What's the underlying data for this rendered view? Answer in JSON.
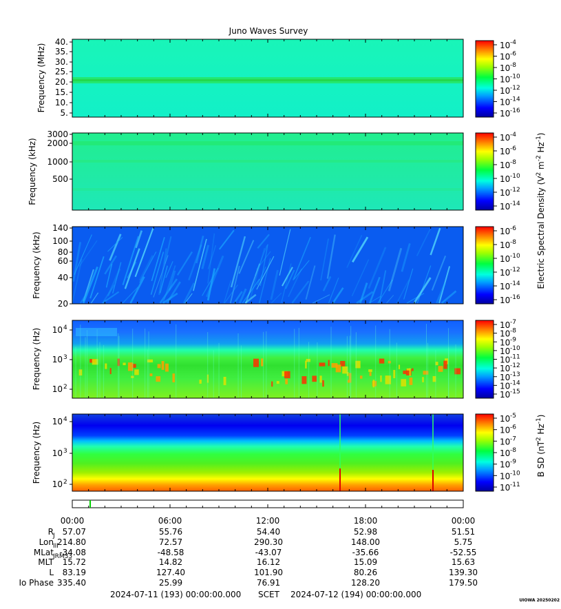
{
  "title": "Juno Waves Survey",
  "panels": [
    {
      "ylabel": "Frequency (MHz)",
      "ticks": [
        "40.",
        "35.",
        "30.",
        "25.",
        "20.",
        "15.",
        "10.",
        "5."
      ],
      "scale": "linear"
    },
    {
      "ylabel": "Frequency (kHz)",
      "ticks": [
        "3000",
        "2000",
        "1000",
        "500"
      ],
      "scale": "log"
    },
    {
      "ylabel": "Frequency (kHz)",
      "ticks": [
        "140",
        "100",
        "80",
        "60",
        "40",
        "20"
      ],
      "scale": "log"
    },
    {
      "ylabel": "Frequency (Hz)",
      "ticks": [
        "10",
        "10",
        "10"
      ],
      "tick_exp": [
        "4",
        "3",
        "2"
      ],
      "scale": "log"
    },
    {
      "ylabel": "Frequency (Hz)",
      "ticks": [
        "10",
        "10",
        "10"
      ],
      "tick_exp": [
        "4",
        "3",
        "2"
      ],
      "scale": "log"
    }
  ],
  "colorbars": [
    {
      "exps": [
        "-4",
        "-6",
        "-8",
        "-10",
        "-12",
        "-14",
        "-16"
      ]
    },
    {
      "exps": [
        "-4",
        "-6",
        "-8",
        "-10",
        "-12",
        "-14"
      ]
    },
    {
      "exps": [
        "-6",
        "-8",
        "-10",
        "-12",
        "-14",
        "-16"
      ]
    },
    {
      "exps": [
        "-7",
        "-8",
        "-9",
        "-10",
        "-11",
        "-12",
        "-13",
        "-14",
        "-15"
      ]
    },
    {
      "exps": [
        "-5",
        "-6",
        "-7",
        "-8",
        "-9",
        "-10",
        "-11"
      ]
    }
  ],
  "colorbar_labels": {
    "electric": {
      "pre": "Electric Spectral Density (V",
      "sup1": "2",
      "mid1": " m",
      "sup2": "-2",
      "mid2": " Hz",
      "sup3": "-1",
      "post": ")"
    },
    "magnetic": {
      "pre": "B SD (nT",
      "sup1": "2",
      "mid1": " Hz",
      "sup2": "-1",
      "post": ")"
    }
  },
  "colorbar_base": "10",
  "time_ticks": [
    "00:00",
    "06:00",
    "12:00",
    "18:00",
    "00:00"
  ],
  "ephemeris": {
    "labels": [
      "R",
      "Lon",
      "MLat",
      "MLT",
      "L",
      "Io Phase"
    ],
    "label_subs": [
      "J",
      "III",
      "JRM33",
      "",
      "",
      ""
    ],
    "rows": [
      [
        "57.07",
        "55.76",
        "54.40",
        "52.98",
        "51.51"
      ],
      [
        "214.80",
        "72.57",
        "290.30",
        "148.00",
        "5.75"
      ],
      [
        "-34.08",
        "-48.58",
        "-43.07",
        "-35.66",
        "-52.55"
      ],
      [
        "15.72",
        "14.82",
        "16.12",
        "15.09",
        "15.63"
      ],
      [
        "83.19",
        "127.40",
        "101.90",
        "80.26",
        "139.30"
      ],
      [
        "335.40",
        "25.99",
        "76.91",
        "128.20",
        "179.50"
      ]
    ]
  },
  "footer": {
    "start": "2024-07-11 (193) 00:00:00.000",
    "mid": "SCET",
    "end": "2024-07-12 (194) 00:00:00.000",
    "credit": "UIOWA 20250202"
  },
  "chart_data": [
    {
      "type": "heatmap",
      "title": "Juno Waves Survey",
      "ylabel": "Frequency (MHz)",
      "ylim": [
        3.5,
        40.5
      ],
      "xlim": [
        "2024-07-11 00:00",
        "2024-07-12 00:00"
      ],
      "features": "uniform background ~1e-13 with a bright band at ~20.8 MHz"
    },
    {
      "type": "heatmap",
      "ylabel": "Frequency (kHz)",
      "ylim": [
        150,
        3000
      ],
      "scale": "log",
      "features": "uniform background ~1e-12"
    },
    {
      "type": "heatmap",
      "ylabel": "Frequency (kHz)",
      "ylim": [
        20,
        140
      ],
      "scale": "log",
      "features": "low background ~1e-15 with drifting emission streaks"
    },
    {
      "type": "heatmap",
      "ylabel": "Frequency (Hz)",
      "ylim": [
        50,
        20000
      ],
      "scale": "log",
      "features": "emission band 100-1000 Hz with intense bursts"
    },
    {
      "type": "heatmap",
      "ylabel": "Frequency (Hz)",
      "ylim": [
        50,
        25000
      ],
      "scale": "log",
      "features": "magnetic spectral density, strong below 300 Hz, spikes near 16:40 and 22:30"
    }
  ]
}
